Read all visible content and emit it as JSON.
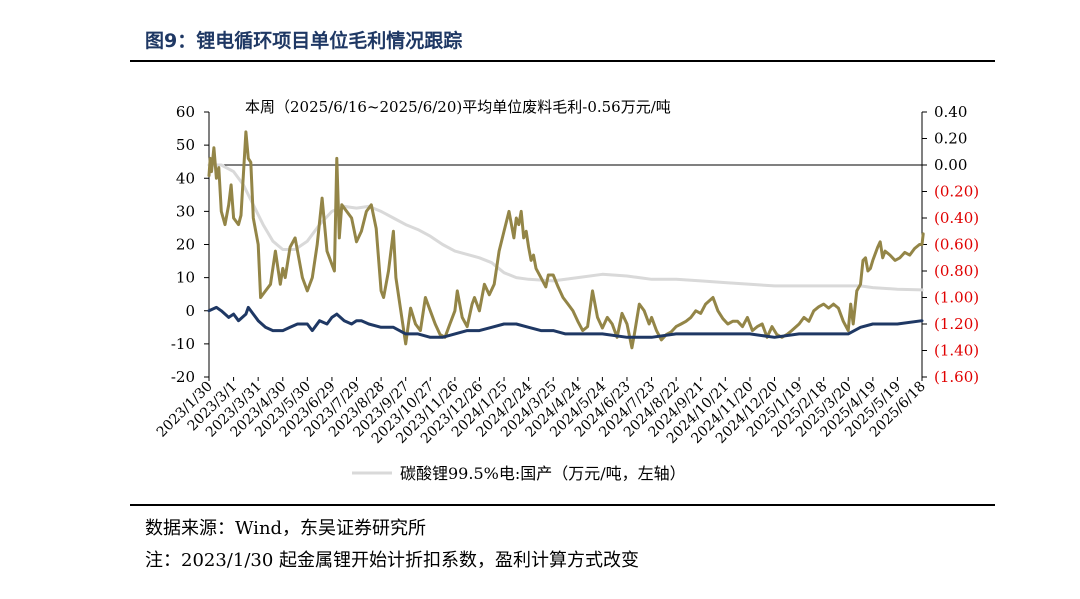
{
  "figure": {
    "title": "图9：锂电循环项目单位毛利情况跟踪",
    "source": "数据来源：Wind，东吴证券研究所",
    "note": "注：2023/1/30 起金属锂开始计折扣系数，盈利计算方式改变"
  },
  "chart_data": {
    "type": "line",
    "annotation": "本周（2025/6/16~2025/6/20)平均单位废料毛利-0.56万元/吨",
    "left_axis": {
      "ylim": [
        -20,
        60
      ],
      "ticks": [
        "-20",
        "-10",
        "0",
        "10",
        "20",
        "30",
        "40",
        "50",
        "60"
      ]
    },
    "right_axis": {
      "ylim": [
        -1.6,
        0.4
      ],
      "ticks": [
        "(1.60)",
        "(1.40)",
        "(1.20)",
        "(1.00)",
        "(0.80)",
        "(0.60)",
        "(0.40)",
        "(0.20)",
        "0.00",
        "0.20",
        "0.40"
      ],
      "negative_color": "#e00000"
    },
    "x_ticks": [
      "2023/1/30",
      "2023/3/1",
      "2023/3/31",
      "2023/4/30",
      "2023/5/30",
      "2023/6/29",
      "2023/7/29",
      "2023/8/28",
      "2023/9/27",
      "2023/10/27",
      "2023/11/26",
      "2023/12/26",
      "2024/1/25",
      "2024/2/24",
      "2024/3/25",
      "2024/4/24",
      "2024/5/24",
      "2024/6/23",
      "2024/7/23",
      "2024/8/22",
      "2024/9/21",
      "2024/10/21",
      "2024/11/20",
      "2024/12/20",
      "2025/1/19",
      "2025/2/18",
      "2025/3/20",
      "2025/4/19",
      "2025/5/19",
      "2025/6/18"
    ],
    "series": [
      {
        "name": "碳酸锂99.5%电:国产（万元/吨，左轴）",
        "axis": "left",
        "color": "#d9d9d9",
        "points": [
          [
            0,
            44
          ],
          [
            0.5,
            44
          ],
          [
            1,
            42
          ],
          [
            1.4,
            38
          ],
          [
            1.8,
            32
          ],
          [
            2.2,
            26
          ],
          [
            2.6,
            21
          ],
          [
            3,
            18.5
          ],
          [
            3.5,
            18.5
          ],
          [
            4,
            21
          ],
          [
            4.5,
            26
          ],
          [
            5,
            30
          ],
          [
            5.5,
            31.5
          ],
          [
            6,
            31
          ],
          [
            6.5,
            31.5
          ],
          [
            7,
            30
          ],
          [
            7.5,
            28
          ],
          [
            8,
            26
          ],
          [
            8.5,
            24.5
          ],
          [
            9,
            22.5
          ],
          [
            9.5,
            20
          ],
          [
            10,
            18
          ],
          [
            10.5,
            17
          ],
          [
            11,
            16
          ],
          [
            11.5,
            14.5
          ],
          [
            12,
            11.5
          ],
          [
            12.5,
            10
          ],
          [
            13,
            9.5
          ],
          [
            14,
            9
          ],
          [
            15,
            10
          ],
          [
            16,
            11
          ],
          [
            17,
            10.5
          ],
          [
            18,
            9.5
          ],
          [
            19,
            9.5
          ],
          [
            20,
            9
          ],
          [
            21,
            8.5
          ],
          [
            22,
            8
          ],
          [
            23,
            7.5
          ],
          [
            24,
            7.5
          ],
          [
            25,
            7.5
          ],
          [
            26,
            7.5
          ],
          [
            26.5,
            7.5
          ],
          [
            27,
            7
          ],
          [
            28,
            6.5
          ],
          [
            29,
            6.3
          ]
        ]
      },
      {
        "name": "",
        "axis": "right",
        "color": "#938547",
        "points": [
          [
            0,
            -0.08
          ],
          [
            0.05,
            0.05
          ],
          [
            0.1,
            -0.05
          ],
          [
            0.2,
            0.13
          ],
          [
            0.3,
            -0.1
          ],
          [
            0.4,
            -0.02
          ],
          [
            0.5,
            -0.35
          ],
          [
            0.65,
            -0.45
          ],
          [
            0.8,
            -0.3
          ],
          [
            0.9,
            -0.15
          ],
          [
            1,
            -0.4
          ],
          [
            1.2,
            -0.45
          ],
          [
            1.3,
            -0.38
          ],
          [
            1.5,
            0.25
          ],
          [
            1.6,
            0.05
          ],
          [
            1.7,
            0.02
          ],
          [
            1.8,
            -0.4
          ],
          [
            2,
            -0.6
          ],
          [
            2.1,
            -1.0
          ],
          [
            2.3,
            -0.95
          ],
          [
            2.5,
            -0.9
          ],
          [
            2.7,
            -0.65
          ],
          [
            2.9,
            -0.9
          ],
          [
            3,
            -0.78
          ],
          [
            3.1,
            -0.85
          ],
          [
            3.3,
            -0.62
          ],
          [
            3.5,
            -0.55
          ],
          [
            3.8,
            -0.85
          ],
          [
            4,
            -0.95
          ],
          [
            4.2,
            -0.85
          ],
          [
            4.4,
            -0.6
          ],
          [
            4.6,
            -0.25
          ],
          [
            4.8,
            -0.65
          ],
          [
            5,
            -0.75
          ],
          [
            5.1,
            -0.8
          ],
          [
            5.2,
            0.05
          ],
          [
            5.3,
            -0.55
          ],
          [
            5.4,
            -0.3
          ],
          [
            5.6,
            -0.35
          ],
          [
            5.8,
            -0.4
          ],
          [
            6,
            -0.58
          ],
          [
            6.2,
            -0.5
          ],
          [
            6.4,
            -0.35
          ],
          [
            6.6,
            -0.3
          ],
          [
            6.8,
            -0.48
          ],
          [
            7,
            -0.95
          ],
          [
            7.1,
            -1.0
          ],
          [
            7.3,
            -0.8
          ],
          [
            7.5,
            -0.5
          ],
          [
            7.6,
            -0.85
          ],
          [
            7.8,
            -1.1
          ],
          [
            8,
            -1.35
          ],
          [
            8.2,
            -1.08
          ],
          [
            8.4,
            -1.2
          ],
          [
            8.6,
            -1.25
          ],
          [
            8.8,
            -1.0
          ],
          [
            9,
            -1.1
          ],
          [
            9.2,
            -1.2
          ],
          [
            9.4,
            -1.28
          ],
          [
            9.6,
            -1.3
          ],
          [
            9.8,
            -1.2
          ],
          [
            10,
            -1.1
          ],
          [
            10.1,
            -0.95
          ],
          [
            10.3,
            -1.15
          ],
          [
            10.5,
            -1.22
          ],
          [
            10.7,
            -1.05
          ],
          [
            10.8,
            -1.0
          ],
          [
            11,
            -1.1
          ],
          [
            11.2,
            -0.9
          ],
          [
            11.4,
            -0.98
          ],
          [
            11.6,
            -0.9
          ],
          [
            11.8,
            -0.65
          ],
          [
            12,
            -0.5
          ],
          [
            12.2,
            -0.35
          ],
          [
            12.4,
            -0.55
          ],
          [
            12.5,
            -0.4
          ],
          [
            12.6,
            -0.45
          ],
          [
            12.7,
            -0.35
          ],
          [
            12.8,
            -0.55
          ],
          [
            12.9,
            -0.5
          ],
          [
            13,
            -0.62
          ],
          [
            13.1,
            -0.72
          ],
          [
            13.2,
            -0.68
          ],
          [
            13.3,
            -0.78
          ],
          [
            13.5,
            -0.85
          ],
          [
            13.7,
            -0.92
          ],
          [
            13.8,
            -0.83
          ],
          [
            14,
            -0.83
          ],
          [
            14.2,
            -0.92
          ],
          [
            14.4,
            -1.0
          ],
          [
            14.6,
            -1.05
          ],
          [
            14.8,
            -1.1
          ],
          [
            15,
            -1.18
          ],
          [
            15.2,
            -1.25
          ],
          [
            15.4,
            -1.22
          ],
          [
            15.6,
            -0.95
          ],
          [
            15.8,
            -1.15
          ],
          [
            16,
            -1.23
          ],
          [
            16.2,
            -1.15
          ],
          [
            16.4,
            -1.2
          ],
          [
            16.6,
            -1.3
          ],
          [
            16.8,
            -1.12
          ],
          [
            17,
            -1.2
          ],
          [
            17.2,
            -1.38
          ],
          [
            17.3,
            -1.28
          ],
          [
            17.5,
            -1.05
          ],
          [
            17.7,
            -1.1
          ],
          [
            17.9,
            -1.2
          ],
          [
            18,
            -1.15
          ],
          [
            18.2,
            -1.25
          ],
          [
            18.4,
            -1.32
          ],
          [
            18.6,
            -1.28
          ],
          [
            18.8,
            -1.26
          ],
          [
            19,
            -1.22
          ],
          [
            19.2,
            -1.2
          ],
          [
            19.4,
            -1.18
          ],
          [
            19.6,
            -1.15
          ],
          [
            19.8,
            -1.1
          ],
          [
            20,
            -1.12
          ],
          [
            20.2,
            -1.05
          ],
          [
            20.5,
            -1.0
          ],
          [
            20.7,
            -1.1
          ],
          [
            20.9,
            -1.16
          ],
          [
            21.1,
            -1.2
          ],
          [
            21.3,
            -1.18
          ],
          [
            21.5,
            -1.18
          ],
          [
            21.7,
            -1.22
          ],
          [
            21.9,
            -1.15
          ],
          [
            22.1,
            -1.25
          ],
          [
            22.3,
            -1.22
          ],
          [
            22.5,
            -1.2
          ],
          [
            22.7,
            -1.3
          ],
          [
            22.9,
            -1.22
          ],
          [
            23.1,
            -1.28
          ],
          [
            23.3,
            -1.3
          ],
          [
            23.5,
            -1.28
          ],
          [
            23.7,
            -1.25
          ],
          [
            24,
            -1.2
          ],
          [
            24.2,
            -1.15
          ],
          [
            24.4,
            -1.18
          ],
          [
            24.6,
            -1.1
          ],
          [
            24.8,
            -1.07
          ],
          [
            25,
            -1.05
          ],
          [
            25.2,
            -1.08
          ],
          [
            25.4,
            -1.05
          ],
          [
            25.6,
            -1.08
          ],
          [
            25.8,
            -1.18
          ],
          [
            26,
            -1.25
          ],
          [
            26.1,
            -1.05
          ],
          [
            26.2,
            -1.2
          ],
          [
            26.35,
            -0.95
          ],
          [
            26.5,
            -0.9
          ],
          [
            26.6,
            -0.72
          ],
          [
            26.7,
            -0.7
          ],
          [
            26.8,
            -0.8
          ],
          [
            26.9,
            -0.78
          ],
          [
            27,
            -0.72
          ],
          [
            27.2,
            -0.62
          ],
          [
            27.3,
            -0.58
          ],
          [
            27.4,
            -0.7
          ],
          [
            27.5,
            -0.65
          ],
          [
            27.7,
            -0.68
          ],
          [
            27.9,
            -0.72
          ],
          [
            28.1,
            -0.7
          ],
          [
            28.3,
            -0.66
          ],
          [
            28.5,
            -0.68
          ],
          [
            28.7,
            -0.63
          ],
          [
            28.9,
            -0.6
          ],
          [
            29,
            -0.6
          ],
          [
            29.05,
            -0.52
          ]
        ]
      },
      {
        "name": "",
        "axis": "left",
        "color": "#1f3864",
        "points": [
          [
            0,
            0
          ],
          [
            0.3,
            1
          ],
          [
            0.5,
            0
          ],
          [
            0.8,
            -2
          ],
          [
            1,
            -1
          ],
          [
            1.2,
            -3
          ],
          [
            1.5,
            -1
          ],
          [
            1.6,
            1
          ],
          [
            1.8,
            -1
          ],
          [
            2,
            -3
          ],
          [
            2.3,
            -5
          ],
          [
            2.6,
            -6
          ],
          [
            3,
            -6
          ],
          [
            3.3,
            -5
          ],
          [
            3.6,
            -4
          ],
          [
            4,
            -4
          ],
          [
            4.2,
            -6
          ],
          [
            4.5,
            -3
          ],
          [
            4.8,
            -4
          ],
          [
            5,
            -2
          ],
          [
            5.2,
            -1
          ],
          [
            5.5,
            -3
          ],
          [
            5.8,
            -4
          ],
          [
            6,
            -3
          ],
          [
            6.2,
            -3
          ],
          [
            6.5,
            -4
          ],
          [
            7,
            -5
          ],
          [
            7.5,
            -5
          ],
          [
            8,
            -7
          ],
          [
            8.5,
            -7
          ],
          [
            9,
            -8
          ],
          [
            9.5,
            -8
          ],
          [
            10,
            -7
          ],
          [
            10.5,
            -6
          ],
          [
            11,
            -6
          ],
          [
            11.5,
            -5
          ],
          [
            12,
            -4
          ],
          [
            12.5,
            -4
          ],
          [
            13,
            -5
          ],
          [
            13.5,
            -6
          ],
          [
            14,
            -6
          ],
          [
            14.5,
            -7
          ],
          [
            15,
            -7
          ],
          [
            16,
            -7
          ],
          [
            17,
            -8
          ],
          [
            18,
            -8
          ],
          [
            19,
            -7
          ],
          [
            20,
            -7
          ],
          [
            21,
            -7
          ],
          [
            22,
            -7
          ],
          [
            23,
            -8
          ],
          [
            24,
            -7
          ],
          [
            25,
            -7
          ],
          [
            26,
            -7
          ],
          [
            26.5,
            -5
          ],
          [
            27,
            -4
          ],
          [
            27.5,
            -4
          ],
          [
            28,
            -4
          ],
          [
            29,
            -3
          ]
        ]
      }
    ]
  }
}
